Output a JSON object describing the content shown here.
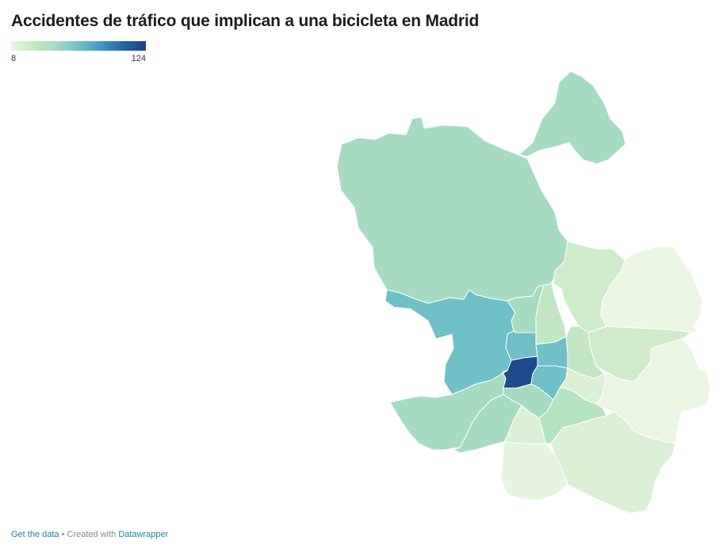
{
  "title": "Accidentes de tráfico que implican a una bicicleta en Madrid",
  "legend": {
    "min_label": "8",
    "max_label": "124",
    "colors": [
      "#e9f6e1",
      "#c7e9c0",
      "#a3dbc3",
      "#6fc0c7",
      "#3f97c4",
      "#2166a8",
      "#1e3f87"
    ]
  },
  "footer": {
    "get_data_label": "Get the data",
    "separator": " • Created with ",
    "datawrapper_label": "Datawrapper"
  }
}
